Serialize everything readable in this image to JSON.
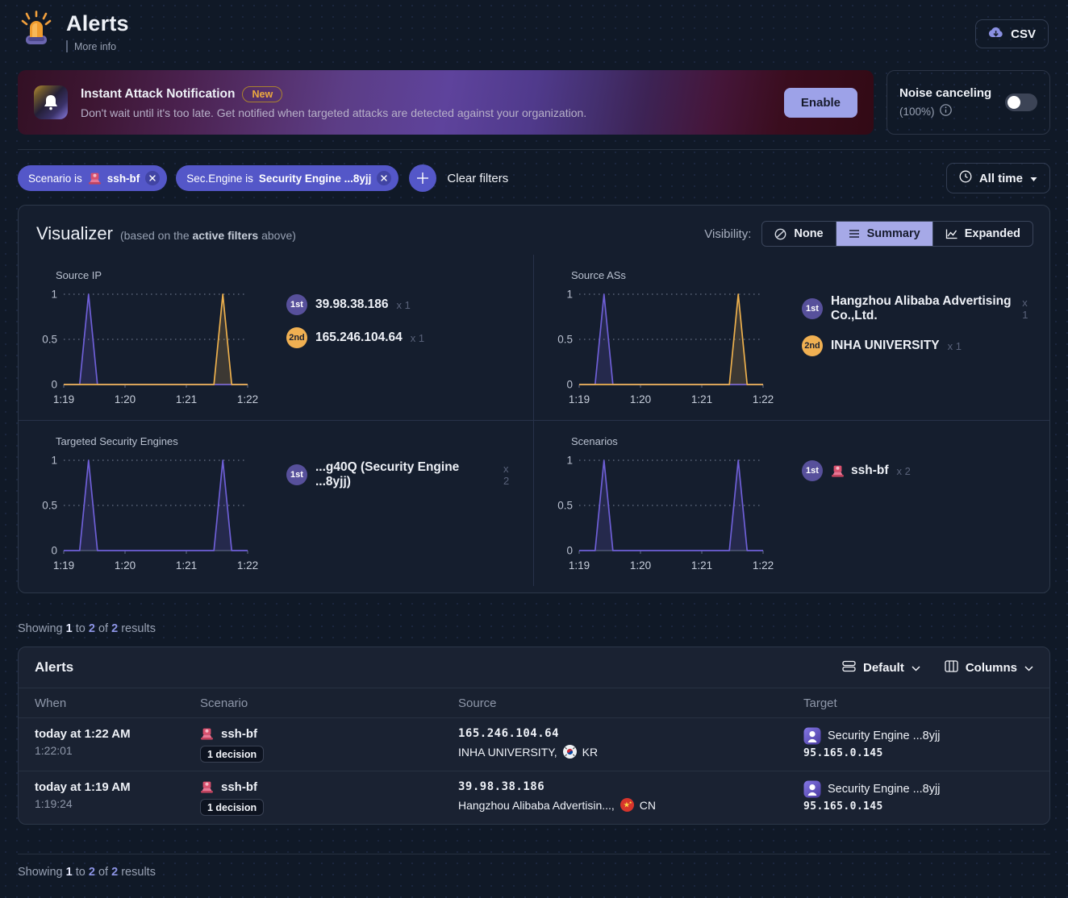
{
  "header": {
    "title": "Alerts",
    "more_info": "More info",
    "csv_label": "CSV"
  },
  "banner": {
    "title": "Instant Attack Notification",
    "badge": "New",
    "description": "Don't wait until it's too late. Get notified when targeted attacks are detected against your organization.",
    "enable_label": "Enable"
  },
  "noise": {
    "label": "Noise canceling",
    "percent": "(100%)"
  },
  "filters": {
    "chips": [
      {
        "prefix": "Scenario is",
        "value": "ssh-bf",
        "icon": "ssh-bf"
      },
      {
        "prefix": "Sec.Engine is",
        "value": "Security Engine ...8yjj"
      }
    ],
    "clear_label": "Clear filters",
    "time_label": "All time"
  },
  "visualizer": {
    "title": "Visualizer",
    "subtitle_prefix": "(based on the ",
    "subtitle_bold": "active filters",
    "subtitle_suffix": " above)",
    "visibility_label": "Visibility:",
    "modes": [
      {
        "label": "None",
        "icon": "none",
        "active": false
      },
      {
        "label": "Summary",
        "icon": "summary",
        "active": true
      },
      {
        "label": "Expanded",
        "icon": "expanded",
        "active": false
      }
    ]
  },
  "chart_data": [
    {
      "type": "line",
      "title": "Source IP",
      "x_ticks": [
        "1:19",
        "1:20",
        "1:21",
        "1:22"
      ],
      "y_ticks": [
        1,
        0.5,
        0
      ],
      "ylim": [
        0,
        1
      ],
      "grid": "dotted",
      "series": [
        {
          "name": "39.98.38.186",
          "rank": "1st",
          "count": 1,
          "mult": "x 1",
          "color": "#6e5fd6",
          "badge_bg": "#57509b",
          "badge_fg": "#ffffff",
          "peaks": [
            0.135
          ],
          "peak_value": 1
        },
        {
          "name": "165.246.104.64",
          "rank": "2nd",
          "count": 1,
          "mult": "x 1",
          "color": "#edb04d",
          "badge_bg": "#f0b052",
          "badge_fg": "#1d2230",
          "peaks": [
            0.865
          ],
          "peak_value": 1
        }
      ]
    },
    {
      "type": "line",
      "title": "Source ASs",
      "x_ticks": [
        "1:19",
        "1:20",
        "1:21",
        "1:22"
      ],
      "y_ticks": [
        1,
        0.5,
        0
      ],
      "ylim": [
        0,
        1
      ],
      "grid": "dotted",
      "series": [
        {
          "name": "Hangzhou Alibaba Advertising Co.,Ltd.",
          "rank": "1st",
          "count": 1,
          "mult": "x 1",
          "color": "#6e5fd6",
          "badge_bg": "#57509b",
          "badge_fg": "#ffffff",
          "peaks": [
            0.135
          ],
          "peak_value": 1
        },
        {
          "name": "INHA UNIVERSITY",
          "rank": "2nd",
          "count": 1,
          "mult": "x 1",
          "color": "#edb04d",
          "badge_bg": "#f0b052",
          "badge_fg": "#1d2230",
          "peaks": [
            0.865
          ],
          "peak_value": 1
        }
      ]
    },
    {
      "type": "line",
      "title": "Targeted Security Engines",
      "x_ticks": [
        "1:19",
        "1:20",
        "1:21",
        "1:22"
      ],
      "y_ticks": [
        1,
        0.5,
        0
      ],
      "ylim": [
        0,
        1
      ],
      "grid": "dotted",
      "series": [
        {
          "name": "...g40Q (Security Engine ...8yjj)",
          "rank": "1st",
          "count": 2,
          "mult": "x 2",
          "color": "#6e5fd6",
          "badge_bg": "#57509b",
          "badge_fg": "#ffffff",
          "peaks": [
            0.135,
            0.865
          ],
          "peak_value": 1
        }
      ]
    },
    {
      "type": "line",
      "title": "Scenarios",
      "x_ticks": [
        "1:19",
        "1:20",
        "1:21",
        "1:22"
      ],
      "y_ticks": [
        1,
        0.5,
        0
      ],
      "ylim": [
        0,
        1
      ],
      "grid": "dotted",
      "series": [
        {
          "name": "ssh-bf",
          "icon": "ssh-bf",
          "rank": "1st",
          "count": 2,
          "mult": "x 2",
          "color": "#6e5fd6",
          "badge_bg": "#57509b",
          "badge_fg": "#ffffff",
          "peaks": [
            0.135,
            0.865
          ],
          "peak_value": 1
        }
      ]
    }
  ],
  "results_summary": {
    "prefix": "Showing",
    "from": "1",
    "to_word": "to",
    "to": "2",
    "of_word": "of",
    "total": "2",
    "suffix": "results"
  },
  "table": {
    "title": "Alerts",
    "density_label": "Default",
    "columns_label": "Columns",
    "headers": [
      "When",
      "Scenario",
      "Source",
      "Target"
    ],
    "rows": [
      {
        "when": "today at 1:22 AM",
        "time": "1:22:01",
        "scenario": "ssh-bf",
        "scenario_icon": "ssh-bf",
        "decisions": "1 decision",
        "source_ip": "165.246.104.64",
        "source_org": "INHA UNIVERSITY,",
        "country": "KR",
        "target_name": "Security Engine ...8yjj",
        "target_ip": "95.165.0.145"
      },
      {
        "when": "today at 1:19 AM",
        "time": "1:19:24",
        "scenario": "ssh-bf",
        "scenario_icon": "ssh-bf",
        "decisions": "1 decision",
        "source_ip": "39.98.38.186",
        "source_org": "Hangzhou Alibaba Advertisin...,",
        "country": "CN",
        "target_name": "Security Engine ...8yjj",
        "target_ip": "95.165.0.145"
      }
    ]
  },
  "colors": {
    "accent_purple": "#5457c8",
    "lavender": "#a6a9e7",
    "series_purple": "#6e5fd6",
    "series_orange": "#edb04d",
    "badge_orange": "#f0b052",
    "new_badge": "#eca93f"
  }
}
